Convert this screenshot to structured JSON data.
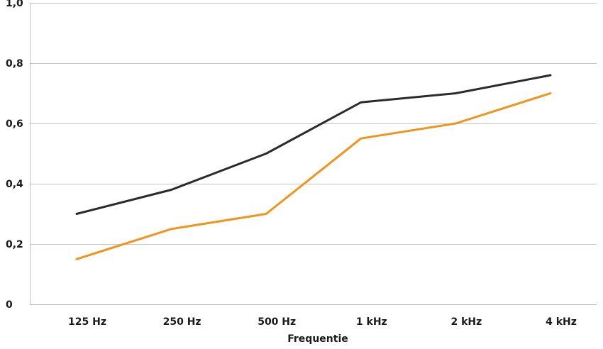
{
  "chart_data": {
    "type": "line",
    "title": "",
    "xlabel": "Frequentie",
    "ylabel": "",
    "categories": [
      "125 Hz",
      "250 Hz",
      "500 Hz",
      "1 kHz",
      "2 kHz",
      "4 kHz"
    ],
    "series": [
      {
        "values": [
          0.3,
          0.38,
          0.5,
          0.67,
          0.7,
          0.76
        ],
        "color": "#2b2b2b"
      },
      {
        "values": [
          0.15,
          0.25,
          0.3,
          0.55,
          0.6,
          0.7
        ],
        "color": "#f0941e"
      }
    ],
    "ylim": [
      0,
      1.0
    ],
    "yticks": [
      {
        "value": 0,
        "label": "0"
      },
      {
        "value": 0.2,
        "label": "0,2"
      },
      {
        "value": 0.4,
        "label": "0,4"
      },
      {
        "value": 0.6,
        "label": "0,6"
      },
      {
        "value": 0.8,
        "label": "0,8"
      },
      {
        "value": 1.0,
        "label": "1,0"
      }
    ],
    "grid": true,
    "legend": "none"
  }
}
